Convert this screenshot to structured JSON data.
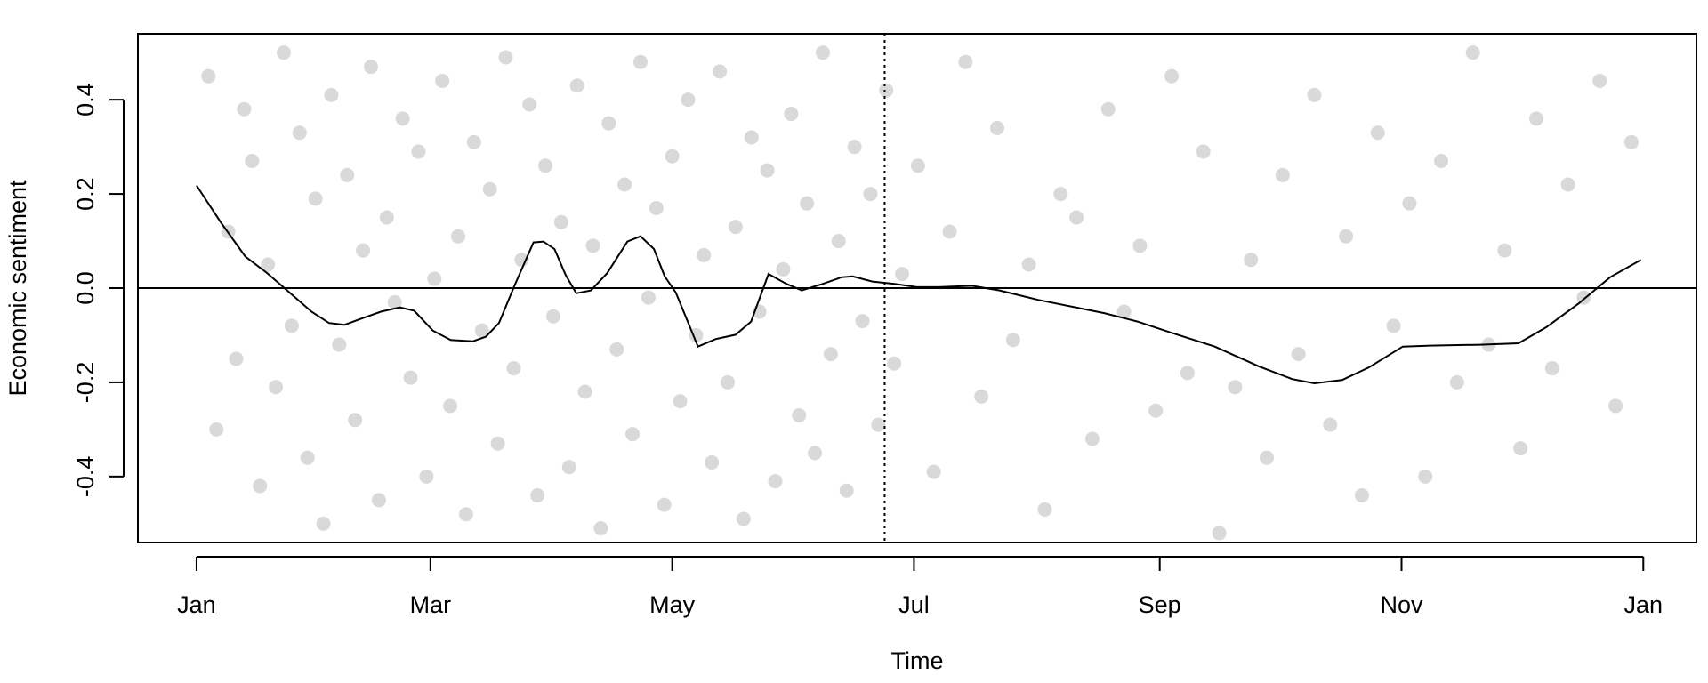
{
  "chart_data": {
    "type": "scatter",
    "x_label": "Time",
    "y_label": "Economic sentiment",
    "xlim": [
      -14.8,
      378.4
    ],
    "ylim": [
      -0.54,
      0.54
    ],
    "xticks": [
      {
        "value": 0,
        "label": "Jan"
      },
      {
        "value": 59,
        "label": "Mar"
      },
      {
        "value": 120,
        "label": "May"
      },
      {
        "value": 181,
        "label": "Jul"
      },
      {
        "value": 243,
        "label": "Sep"
      },
      {
        "value": 304,
        "label": "Nov"
      },
      {
        "value": 365,
        "label": "Jan"
      }
    ],
    "yticks": [
      -0.4,
      -0.2,
      {
        "value": 0,
        "label": "0.0"
      },
      0.2,
      0.4
    ],
    "hline": 0,
    "vline": 173.6,
    "points": {
      "color": "rgba(120,120,120,0.28)",
      "x": [
        3,
        5,
        8,
        10,
        12,
        14,
        16,
        18,
        20,
        22,
        24,
        26,
        28,
        30,
        32,
        34,
        36,
        38,
        40,
        42,
        44,
        46,
        48,
        50,
        52,
        54,
        56,
        58,
        60,
        62,
        64,
        66,
        68,
        70,
        72,
        74,
        76,
        78,
        80,
        82,
        84,
        86,
        88,
        90,
        92,
        94,
        96,
        98,
        100,
        102,
        104,
        106,
        108,
        110,
        112,
        114,
        116,
        118,
        120,
        122,
        124,
        126,
        128,
        130,
        132,
        134,
        136,
        138,
        140,
        142,
        144,
        146,
        148,
        150,
        152,
        154,
        156,
        158,
        160,
        162,
        164,
        166,
        168,
        170,
        172,
        174,
        176,
        178,
        182,
        186,
        190,
        194,
        198,
        202,
        206,
        210,
        214,
        218,
        222,
        226,
        230,
        234,
        238,
        242,
        246,
        250,
        254,
        258,
        262,
        266,
        270,
        274,
        278,
        282,
        286,
        290,
        294,
        298,
        302,
        306,
        310,
        314,
        318,
        322,
        326,
        330,
        334,
        338,
        342,
        346,
        350,
        354,
        358,
        362
      ],
      "y": [
        0.45,
        -0.3,
        0.12,
        -0.15,
        0.38,
        0.27,
        -0.42,
        0.05,
        -0.21,
        0.5,
        -0.08,
        0.33,
        -0.36,
        0.19,
        -0.5,
        0.41,
        -0.12,
        0.24,
        -0.28,
        0.08,
        0.47,
        -0.45,
        0.15,
        -0.03,
        0.36,
        -0.19,
        0.29,
        -0.4,
        0.02,
        0.44,
        -0.25,
        0.11,
        -0.48,
        0.31,
        -0.09,
        0.21,
        -0.33,
        0.49,
        -0.17,
        0.06,
        0.39,
        -0.44,
        0.26,
        -0.06,
        0.14,
        -0.38,
        0.43,
        -0.22,
        0.09,
        -0.51,
        0.35,
        -0.13,
        0.22,
        -0.31,
        0.48,
        -0.02,
        0.17,
        -0.46,
        0.28,
        -0.24,
        0.4,
        -0.1,
        0.07,
        -0.37,
        0.46,
        -0.2,
        0.13,
        -0.49,
        0.32,
        -0.05,
        0.25,
        -0.41,
        0.04,
        0.37,
        -0.27,
        0.18,
        -0.35,
        0.5,
        -0.14,
        0.1,
        -0.43,
        0.3,
        -0.07,
        0.2,
        -0.29,
        0.42,
        -0.16,
        0.03,
        0.26,
        -0.39,
        0.12,
        0.48,
        -0.23,
        0.34,
        -0.11,
        0.05,
        -0.47,
        0.2,
        0.15,
        -0.32,
        0.38,
        -0.05,
        0.09,
        -0.26,
        0.45,
        -0.18,
        0.29,
        -0.52,
        -0.21,
        0.06,
        -0.36,
        0.24,
        -0.14,
        0.41,
        -0.29,
        0.11,
        -0.44,
        0.33,
        -0.08,
        0.18,
        -0.4,
        0.27,
        -0.2,
        0.5,
        -0.12,
        0.08,
        -0.34,
        0.36,
        -0.17,
        0.22,
        -0.02,
        0.44,
        -0.25,
        0.31
      ]
    },
    "smooth": {
      "color": "#000000",
      "x": [
        0,
        6.1,
        12.3,
        17.8,
        23.4,
        29,
        33.4,
        37.3,
        41.8,
        46.5,
        51.3,
        54.9,
        59.6,
        64.1,
        69.7,
        73,
        76.3,
        80.2,
        85,
        87.5,
        90.3,
        93.1,
        95.8,
        99.5,
        103.6,
        108.7,
        112,
        115.4,
        118.1,
        120.9,
        126.5,
        131,
        136,
        139.9,
        144.3,
        148.8,
        152.7,
        158,
        162.7,
        165.5,
        170.5,
        176.1,
        181.7,
        187.2,
        195.6,
        202.6,
        212.3,
        229,
        237.4,
        245.7,
        256.9,
        268,
        276.4,
        282,
        289,
        295.8,
        304.3,
        311.2,
        323.8,
        333.5,
        340.5,
        348.8,
        356.6,
        364.4
      ],
      "y": [
        0.218,
        0.14,
        0.067,
        0.032,
        -0.009,
        -0.05,
        -0.074,
        -0.078,
        -0.064,
        -0.05,
        -0.041,
        -0.048,
        -0.09,
        -0.11,
        -0.113,
        -0.103,
        -0.074,
        0.005,
        0.097,
        0.099,
        0.083,
        0.028,
        -0.011,
        -0.005,
        0.032,
        0.099,
        0.11,
        0.083,
        0.025,
        -0.009,
        -0.124,
        -0.108,
        -0.099,
        -0.071,
        0.03,
        0.009,
        -0.005,
        0.009,
        0.023,
        0.025,
        0.014,
        0.009,
        0.002,
        0.002,
        0.005,
        -0.005,
        -0.025,
        -0.053,
        -0.071,
        -0.094,
        -0.124,
        -0.166,
        -0.193,
        -0.202,
        -0.195,
        -0.168,
        -0.124,
        -0.122,
        -0.12,
        -0.117,
        -0.083,
        -0.032,
        0.023,
        0.06
      ]
    }
  }
}
